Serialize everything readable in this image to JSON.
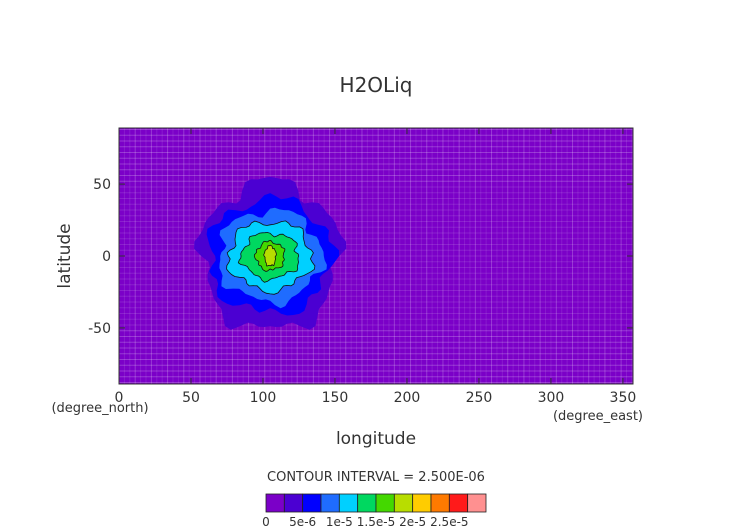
{
  "chart_data": {
    "type": "heatmap",
    "title": "H2OLiq",
    "xlabel": "longitude",
    "ylabel": "latitude",
    "x_unit": "(degree_east)",
    "y_unit": "(degree_north)",
    "xlim": [
      0,
      357
    ],
    "ylim": [
      -89,
      89
    ],
    "x_ticks": [
      0,
      50,
      100,
      150,
      200,
      250,
      300,
      350
    ],
    "y_ticks": [
      50,
      0,
      -50
    ],
    "contour_interval_text": "CONTOUR INTERVAL = 2.500E-06",
    "contour_interval": 2.5e-06,
    "field_center": {
      "lon": 105,
      "lat": 0
    },
    "levels": [
      {
        "value": 2.5e-06,
        "rx": 48,
        "ry": 52
      },
      {
        "value": 5e-06,
        "rx": 43,
        "ry": 40
      },
      {
        "value": 7.5e-06,
        "rx": 36,
        "ry": 32
      },
      {
        "value": 1e-05,
        "rx": 29,
        "ry": 24
      },
      {
        "value": 1.25e-05,
        "rx": 20,
        "ry": 16
      },
      {
        "value": 1.5e-05,
        "rx": 10,
        "ry": 10
      },
      {
        "value": 1.75e-05,
        "rx": 4,
        "ry": 7
      }
    ],
    "colorbar": {
      "colors": [
        "#7b00c8",
        "#4b00d2",
        "#0000ff",
        "#1f6cff",
        "#00d0ff",
        "#00d860",
        "#44d800",
        "#b8dd00",
        "#ffcc00",
        "#ff7a00",
        "#ff1a1a",
        "#ff9090"
      ],
      "labels": [
        "0",
        "5e-6",
        "1e-5",
        "1.5e-5",
        "2e-5",
        "2.5e-5"
      ]
    }
  }
}
